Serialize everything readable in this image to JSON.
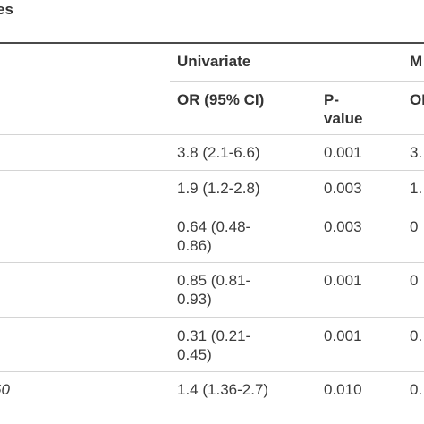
{
  "table": {
    "caption_fragment": "es",
    "group_headers": {
      "univariate": "Univariate",
      "multivariate_fragment": "M"
    },
    "column_headers": {
      "univariate_or": "OR (95% CI)",
      "univariate_p": "P-value",
      "multivariate_or_fragment": "OI"
    },
    "rows": [
      {
        "label_fragment": "",
        "or": "3.8 (2.1-6.6)",
        "p": "0.001",
        "mv_fragment": "3."
      },
      {
        "label_fragment": "",
        "or": "1.9 (1.2-2.8)",
        "p": "0.003",
        "mv_fragment": "1."
      },
      {
        "label_fragment": "",
        "or": "0.64 (0.48-0.86)",
        "p": "0.003",
        "mv_fragment": "0"
      },
      {
        "label_fragment": "",
        "or": "0.85 (0.81-0.93)",
        "p": "0.001",
        "mv_fragment": "0"
      },
      {
        "label_fragment": "",
        "or": "0.31 (0.21-0.45)",
        "p": "0.001",
        "mv_fragment": "0."
      },
      {
        "label_fragment": "60",
        "or": "1.4 (1.36-2.7)",
        "p": "0.010",
        "mv_fragment": "0."
      }
    ]
  }
}
